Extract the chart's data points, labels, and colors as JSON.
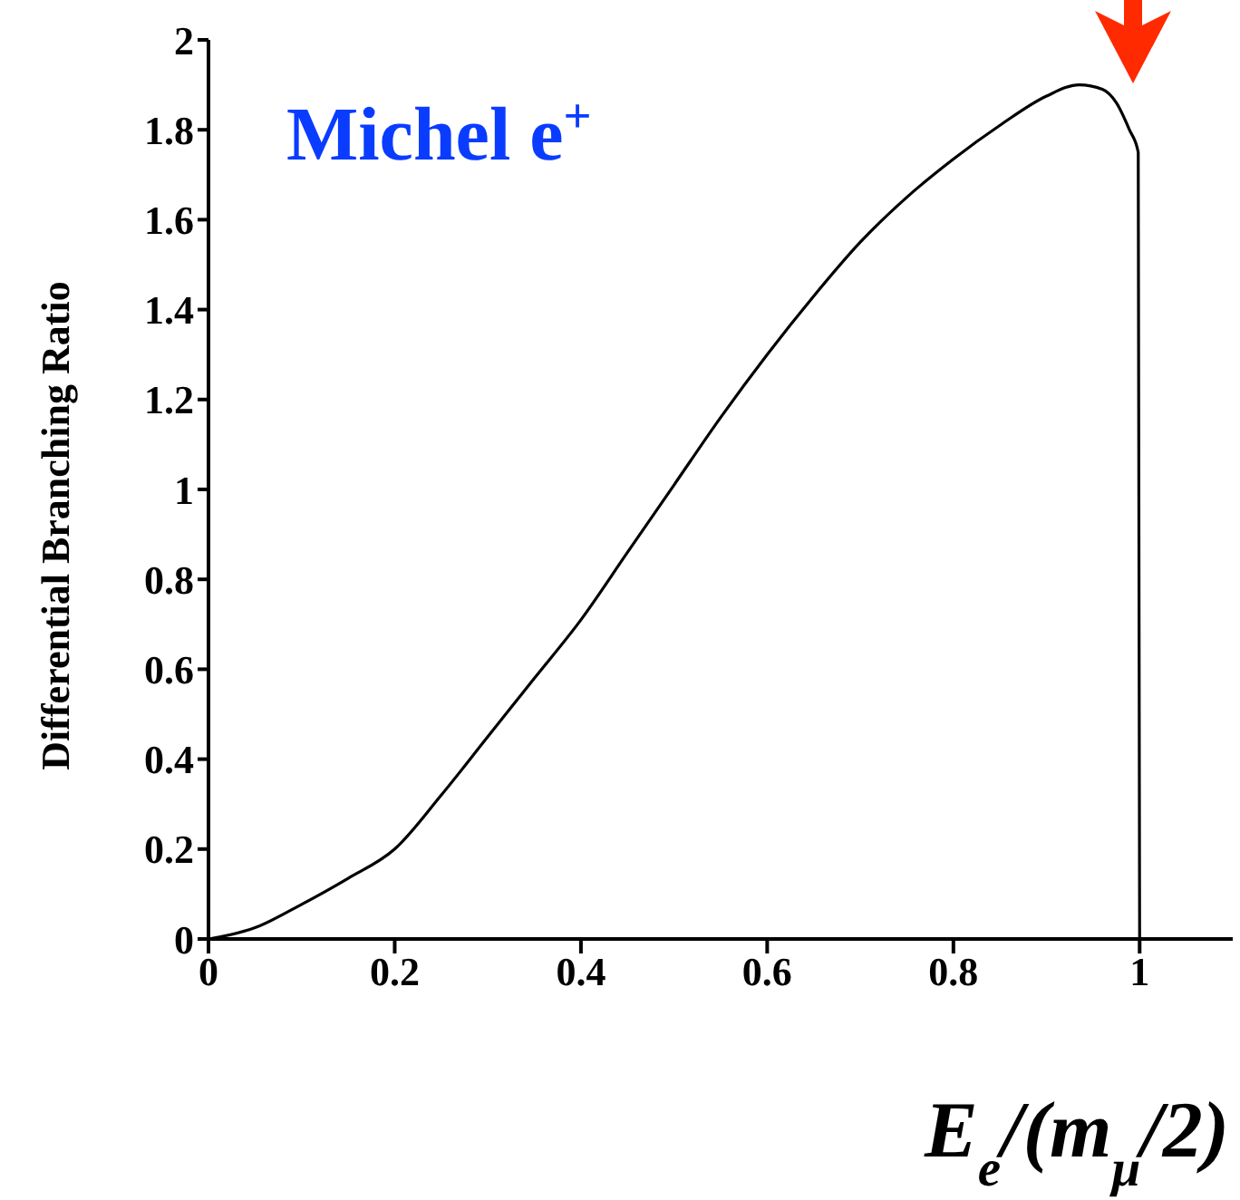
{
  "chart_data": {
    "type": "line",
    "xlabel": "E$_{e}$/(m$_{μ}$/2)",
    "ylabel": "Differential Branching Ratio",
    "annotations": [
      "Michel e$^{+}$"
    ],
    "x": [
      0,
      0.05,
      0.1,
      0.15,
      0.2,
      0.25,
      0.3,
      0.35,
      0.4,
      0.45,
      0.5,
      0.55,
      0.6,
      0.65,
      0.7,
      0.75,
      0.8,
      0.85,
      0.9,
      0.935,
      0.96,
      0.975,
      0.989,
      0.9985,
      1.0
    ],
    "series": [
      {
        "color": "#000000",
        "values": [
          0,
          0.025,
          0.077,
          0.135,
          0.2,
          0.32,
          0.45,
          0.58,
          0.71,
          0.86,
          1.01,
          1.16,
          1.3,
          1.43,
          1.55,
          1.65,
          1.735,
          1.81,
          1.875,
          1.9,
          1.89,
          1.86,
          1.8,
          1.75,
          0
        ]
      }
    ],
    "xlim": [
      0,
      1.1
    ],
    "xticks": [
      0,
      0.2,
      0.4,
      0.6,
      0.8,
      1
    ],
    "ylim": [
      0,
      2
    ],
    "yticks": [
      0,
      0.2,
      0.4,
      0.6,
      0.8,
      1,
      1.2,
      1.4,
      1.6,
      1.8,
      2
    ],
    "grid": false,
    "legend": false,
    "marker": "none",
    "line_style": "solid"
  }
}
